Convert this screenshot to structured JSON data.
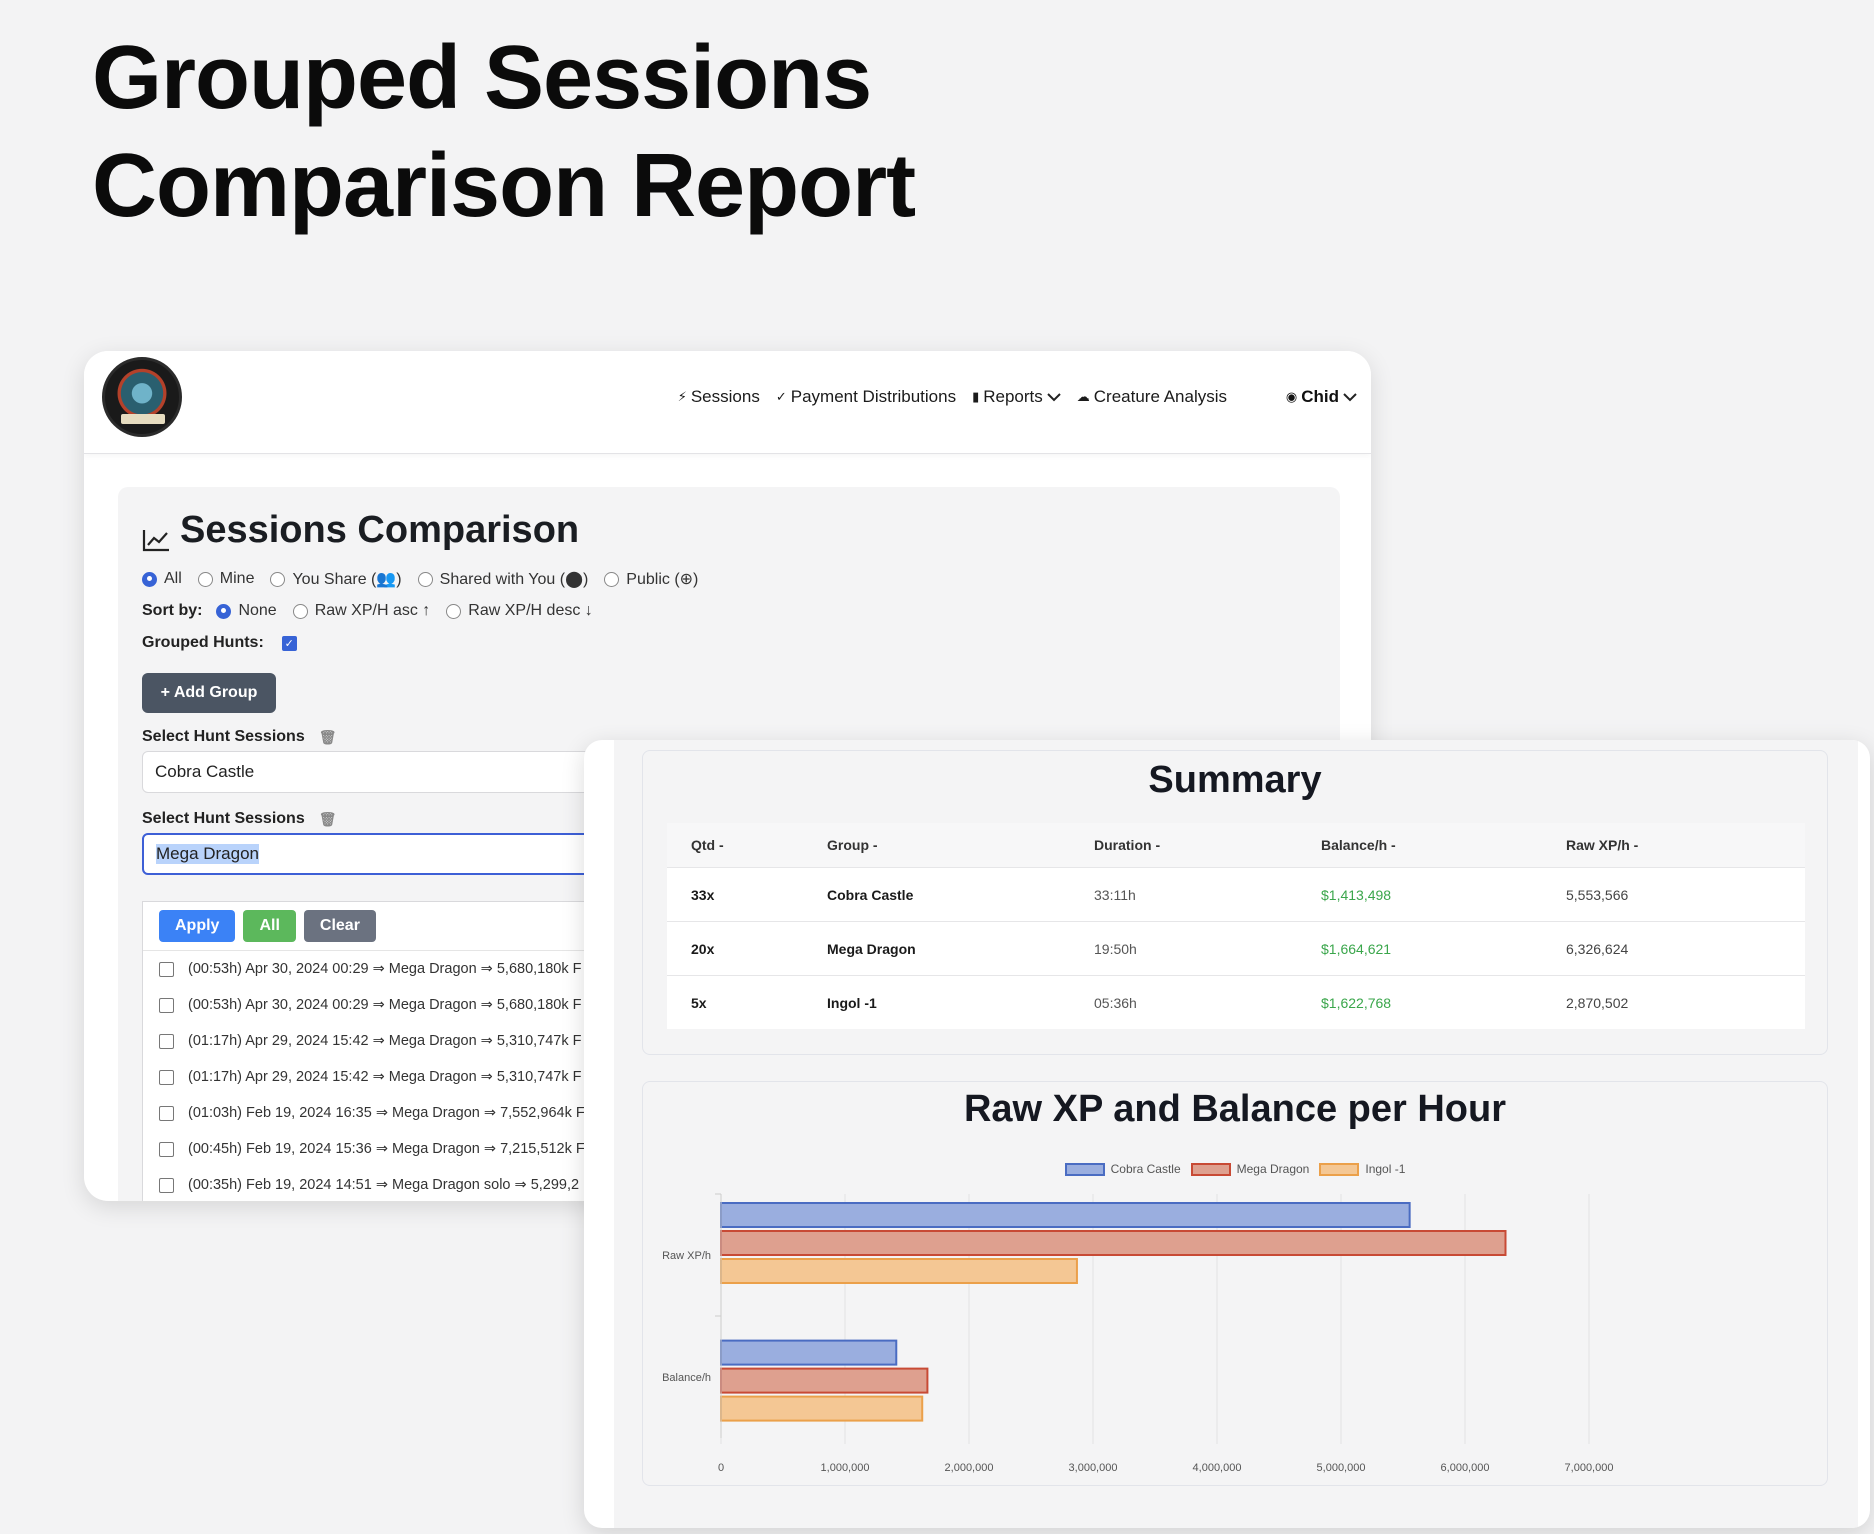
{
  "hero": {
    "line1": "Grouped Sessions",
    "line2": "Comparison Report"
  },
  "nav": {
    "items": [
      {
        "icon": "⚡",
        "label": "Sessions"
      },
      {
        "icon": "✓",
        "label": "Payment Distributions"
      },
      {
        "icon": "▮",
        "label": "Reports"
      },
      {
        "icon": "☁",
        "label": "Creature Analysis"
      }
    ],
    "user": {
      "icon": "◉",
      "label": "Chid"
    }
  },
  "panel": {
    "title": "Sessions Comparison",
    "filters": [
      "All",
      "Mine",
      "You Share (👥)",
      "Shared with You (⬤)",
      "Public (⊕)"
    ],
    "sort_label": "Sort by:",
    "sort_options": [
      "None",
      "Raw XP/H asc ↑",
      "Raw XP/H desc ↓"
    ],
    "grouped_label": "Grouped Hunts:",
    "add_group": "+ Add Group",
    "select_label": "Select Hunt Sessions",
    "select1_value": "Cobra Castle",
    "select2_value": "Mega Dragon",
    "dd_buttons": {
      "apply": "Apply",
      "all": "All",
      "clear": "Clear"
    },
    "dd_items": [
      "(00:53h) Apr 30, 2024 00:29 ⇒ Mega Dragon ⇒ 5,680,180k F",
      "(00:53h) Apr 30, 2024 00:29 ⇒ Mega Dragon ⇒ 5,680,180k F",
      "(01:17h) Apr 29, 2024 15:42 ⇒ Mega Dragon ⇒ 5,310,747k F",
      "(01:17h) Apr 29, 2024 15:42 ⇒ Mega Dragon ⇒ 5,310,747k F",
      "(01:03h) Feb 19, 2024 16:35 ⇒ Mega Dragon ⇒ 7,552,964k F",
      "(00:45h) Feb 19, 2024 15:36 ⇒ Mega Dragon ⇒ 7,215,512k F",
      "(00:35h) Feb 19, 2024 14:51 ⇒ Mega Dragon solo ⇒ 5,299,2"
    ]
  },
  "summary": {
    "title": "Summary",
    "headers": [
      "Qtd -",
      "Group -",
      "Duration -",
      "Balance/h -",
      "Raw XP/h -"
    ],
    "rows": [
      [
        "33x",
        "Cobra Castle",
        "33:11h",
        "$1,413,498",
        "5,553,566"
      ],
      [
        "20x",
        "Mega Dragon",
        "19:50h",
        "$1,664,621",
        "6,326,624"
      ],
      [
        "5x",
        "Ingol -1",
        "05:36h",
        "$1,622,768",
        "2,870,502"
      ]
    ]
  },
  "chart_data": {
    "type": "bar",
    "orientation": "horizontal",
    "title": "Raw XP and Balance per Hour",
    "categories": [
      "Raw XP/h",
      "Balance/h"
    ],
    "series": [
      {
        "name": "Cobra Castle",
        "values": [
          5553566,
          1413498
        ],
        "fill": "#9aaedf",
        "stroke": "#4a6cc2"
      },
      {
        "name": "Mega Dragon",
        "values": [
          6326624,
          1664621
        ],
        "fill": "#dea08f",
        "stroke": "#c84a35"
      },
      {
        "name": "Ingol -1",
        "values": [
          2870502,
          1622768
        ],
        "fill": "#f4c794",
        "stroke": "#eba04a"
      }
    ],
    "xlim": [
      0,
      7000000
    ],
    "xticks": [
      "0",
      "1,000,000",
      "2,000,000",
      "3,000,000",
      "4,000,000",
      "5,000,000",
      "6,000,000",
      "7,000,000"
    ],
    "legend": "top",
    "grid": true
  }
}
